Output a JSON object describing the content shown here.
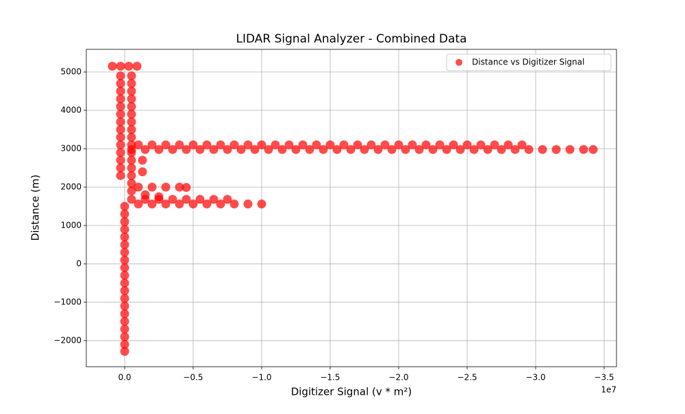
{
  "chart_data": {
    "type": "scatter",
    "title": "LIDAR Signal Analyzer - Combined Data",
    "x_label": "Digitizer Signal (v * m²)",
    "y_label": "Distance (m)",
    "x_offset_label": "1e7",
    "xlim": [
      2800000,
      -35900000
    ],
    "ylim": [
      -2680,
      5590
    ],
    "xticks": [
      {
        "value": 0,
        "label": "0.0"
      },
      {
        "value": -5000000,
        "label": "−0.5"
      },
      {
        "value": -10000000,
        "label": "−1.0"
      },
      {
        "value": -15000000,
        "label": "−1.5"
      },
      {
        "value": -20000000,
        "label": "−2.0"
      },
      {
        "value": -25000000,
        "label": "−2.5"
      },
      {
        "value": -30000000,
        "label": "−3.0"
      },
      {
        "value": -35000000,
        "label": "−3.5"
      }
    ],
    "yticks": [
      {
        "value": -2000,
        "label": "−2000"
      },
      {
        "value": -1000,
        "label": "−1000"
      },
      0,
      1000,
      2000,
      3000,
      4000,
      5000
    ],
    "grid": true,
    "legend": "upper right",
    "series": [
      {
        "name": "Distance vs Digitizer Signal",
        "color": "#ff0000",
        "x": [
          0,
          0,
          0,
          0,
          0,
          0,
          0,
          0,
          0,
          0,
          0,
          0,
          0,
          0,
          0,
          0,
          0,
          0,
          0,
          0,
          -1000000.0,
          -2000000.0,
          -3000000.0,
          -4000000.0,
          -5000000.0,
          -6000000.0,
          -7000000.0,
          -8000000.0,
          -9000000.0,
          -10000000.0,
          -500000.0,
          -1500000.0,
          -2500000.0,
          -3500000.0,
          -4500000.0,
          -5500000.0,
          -6500000.0,
          -7500000.0,
          -500000.0,
          -1500000.0,
          -2500000.0,
          -1000000.0,
          -2000000.0,
          -3000000.0,
          -4000000.0,
          -4500000.0,
          -500000.0,
          -500000.0,
          -500000.0,
          -500000.0,
          -500000.0,
          -500000.0,
          -500000.0,
          -500000.0,
          -500000.0,
          -500000.0,
          -500000.0,
          -500000.0,
          -500000.0,
          -500000.0,
          -500000.0,
          300000.0,
          300000.0,
          300000.0,
          300000.0,
          300000.0,
          300000.0,
          300000.0,
          300000.0,
          300000.0,
          300000.0,
          300000.0,
          300000.0,
          300000.0,
          300000.0,
          900000.0,
          300000.0,
          -300000.0,
          -900000.0,
          -1300000.0,
          -1300000.0,
          -500000.0,
          -1500000.0,
          -2500000.0,
          -3500000.0,
          -4500000.0,
          -5500000.0,
          -6500000.0,
          -7500000.0,
          -8500000.0,
          -9500000.0,
          -10500000.0,
          -11500000.0,
          -12500000.0,
          -13500000.0,
          -14500000.0,
          -15500000.0,
          -16500000.0,
          -17500000.0,
          -18500000.0,
          -19500000.0,
          -20500000.0,
          -21500000.0,
          -22500000.0,
          -23500000.0,
          -24500000.0,
          -25500000.0,
          -26500000.0,
          -27500000.0,
          -28500000.0,
          -29500000.0,
          -30500000.0,
          -31500000.0,
          -32500000.0,
          -33500000.0,
          -34200000.0,
          -1000000.0,
          -2000000.0,
          -3000000.0,
          -4000000.0,
          -5000000.0,
          -6000000.0,
          -7000000.0,
          -8000000.0,
          -9000000.0,
          -10000000.0,
          -11000000.0,
          -12000000.0,
          -13000000.0,
          -14000000.0,
          -15000000.0,
          -16000000.0,
          -17000000.0,
          -18000000.0,
          -19000000.0,
          -20000000.0,
          -21000000.0,
          -22000000.0,
          -23000000.0,
          -24000000.0,
          -25000000.0,
          -26000000.0,
          -27000000.0,
          -28000000.0,
          -29000000.0
        ],
        "values": [
          -2280,
          -2100,
          -1900,
          -1700,
          -1500,
          -1300,
          -1100,
          -900,
          -700,
          -500,
          -300,
          -100,
          100,
          300,
          500,
          700,
          900,
          1100,
          1300,
          1500,
          1560,
          1560,
          1560,
          1560,
          1560,
          1560,
          1560,
          1560,
          1560,
          1560,
          1680,
          1680,
          1680,
          1680,
          1680,
          1680,
          1680,
          1680,
          1900,
          1800,
          1750,
          2000,
          2000,
          2000,
          2000,
          1990,
          2100,
          2300,
          2500,
          2700,
          2900,
          3100,
          3300,
          3500,
          3700,
          3900,
          4100,
          4300,
          4500,
          4700,
          4900,
          2300,
          2500,
          2700,
          2900,
          3100,
          3300,
          3500,
          3700,
          3900,
          4100,
          4300,
          4500,
          4700,
          4900,
          5150,
          5150,
          5150,
          5150,
          2400,
          2700,
          2980,
          2980,
          2980,
          2980,
          2980,
          2980,
          2980,
          2980,
          2980,
          2980,
          2980,
          2980,
          2980,
          2980,
          2980,
          2980,
          2980,
          2980,
          2980,
          2980,
          2980,
          2980,
          2980,
          2980,
          2980,
          2980,
          2980,
          2980,
          2980,
          2980,
          2980,
          2980,
          2980,
          2980,
          2980,
          3100,
          3100,
          3100,
          3100,
          3100,
          3100,
          3100,
          3100,
          3100,
          3100,
          3100,
          3100,
          3100,
          3100,
          3100,
          3100,
          3100,
          3100,
          3100,
          3100,
          3100,
          3100,
          3100,
          3100,
          3100,
          3100,
          3100,
          3100,
          3100
        ]
      }
    ]
  }
}
